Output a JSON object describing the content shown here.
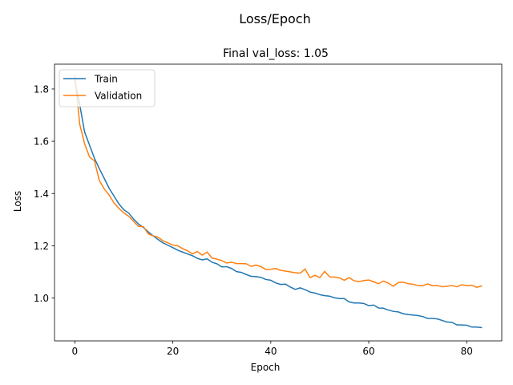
{
  "figure": {
    "suptitle": "Loss/Epoch",
    "title": "Final val_loss: 1.05"
  },
  "chart_data": {
    "type": "line",
    "title": "Final val_loss: 1.05",
    "xlabel": "Epoch",
    "ylabel": "Loss",
    "xlim": [
      -4.15,
      87.15
    ],
    "ylim": [
      0.836,
      1.895
    ],
    "xticks": [
      0,
      20,
      40,
      60,
      80
    ],
    "yticks": [
      1.0,
      1.2,
      1.4,
      1.6,
      1.8
    ],
    "xtick_labels": [
      "0",
      "20",
      "40",
      "60",
      "80"
    ],
    "ytick_labels": [
      "1.0",
      "1.2",
      "1.4",
      "1.6",
      "1.8"
    ],
    "grid": false,
    "legend": {
      "position": "top-left",
      "entries": [
        "Train",
        "Validation"
      ]
    },
    "x": [
      0,
      1,
      2,
      3,
      4,
      5,
      6,
      7,
      8,
      9,
      10,
      11,
      12,
      13,
      14,
      15,
      16,
      17,
      18,
      19,
      20,
      21,
      22,
      23,
      24,
      25,
      26,
      27,
      28,
      29,
      30,
      31,
      32,
      33,
      34,
      35,
      36,
      37,
      38,
      39,
      40,
      41,
      42,
      43,
      44,
      45,
      46,
      47,
      48,
      49,
      50,
      51,
      52,
      53,
      54,
      55,
      56,
      57,
      58,
      59,
      60,
      61,
      62,
      63,
      64,
      65,
      66,
      67,
      68,
      69,
      70,
      71,
      72,
      73,
      74,
      75,
      76,
      77,
      78,
      79,
      80,
      81,
      82,
      83
    ],
    "series": [
      {
        "name": "Train",
        "color": "#1f77b4",
        "values": [
          1.83,
          1.74,
          1.635,
          1.585,
          1.535,
          1.495,
          1.458,
          1.42,
          1.39,
          1.36,
          1.338,
          1.325,
          1.302,
          1.283,
          1.27,
          1.253,
          1.238,
          1.224,
          1.211,
          1.202,
          1.193,
          1.183,
          1.176,
          1.169,
          1.162,
          1.152,
          1.146,
          1.15,
          1.137,
          1.131,
          1.119,
          1.12,
          1.113,
          1.101,
          1.098,
          1.09,
          1.083,
          1.082,
          1.079,
          1.071,
          1.068,
          1.058,
          1.052,
          1.053,
          1.042,
          1.033,
          1.039,
          1.032,
          1.023,
          1.019,
          1.013,
          1.009,
          1.007,
          1.001,
          0.998,
          0.998,
          0.985,
          0.981,
          0.981,
          0.979,
          0.971,
          0.973,
          0.962,
          0.961,
          0.954,
          0.949,
          0.947,
          0.94,
          0.937,
          0.935,
          0.933,
          0.929,
          0.922,
          0.922,
          0.92,
          0.914,
          0.908,
          0.907,
          0.897,
          0.897,
          0.896,
          0.889,
          0.889,
          0.887
        ]
      },
      {
        "name": "Validation",
        "color": "#ff7f0e",
        "values": [
          1.85,
          1.665,
          1.59,
          1.54,
          1.525,
          1.45,
          1.418,
          1.394,
          1.364,
          1.343,
          1.326,
          1.313,
          1.293,
          1.274,
          1.273,
          1.245,
          1.238,
          1.233,
          1.219,
          1.211,
          1.203,
          1.2,
          1.189,
          1.181,
          1.169,
          1.178,
          1.164,
          1.176,
          1.153,
          1.149,
          1.143,
          1.134,
          1.137,
          1.132,
          1.132,
          1.131,
          1.121,
          1.126,
          1.12,
          1.109,
          1.11,
          1.113,
          1.106,
          1.103,
          1.1,
          1.097,
          1.095,
          1.111,
          1.078,
          1.087,
          1.078,
          1.102,
          1.081,
          1.08,
          1.077,
          1.068,
          1.078,
          1.066,
          1.063,
          1.067,
          1.069,
          1.062,
          1.055,
          1.065,
          1.057,
          1.045,
          1.059,
          1.061,
          1.055,
          1.053,
          1.048,
          1.047,
          1.054,
          1.047,
          1.048,
          1.043,
          1.045,
          1.048,
          1.043,
          1.051,
          1.047,
          1.049,
          1.041,
          1.046
        ]
      }
    ]
  }
}
